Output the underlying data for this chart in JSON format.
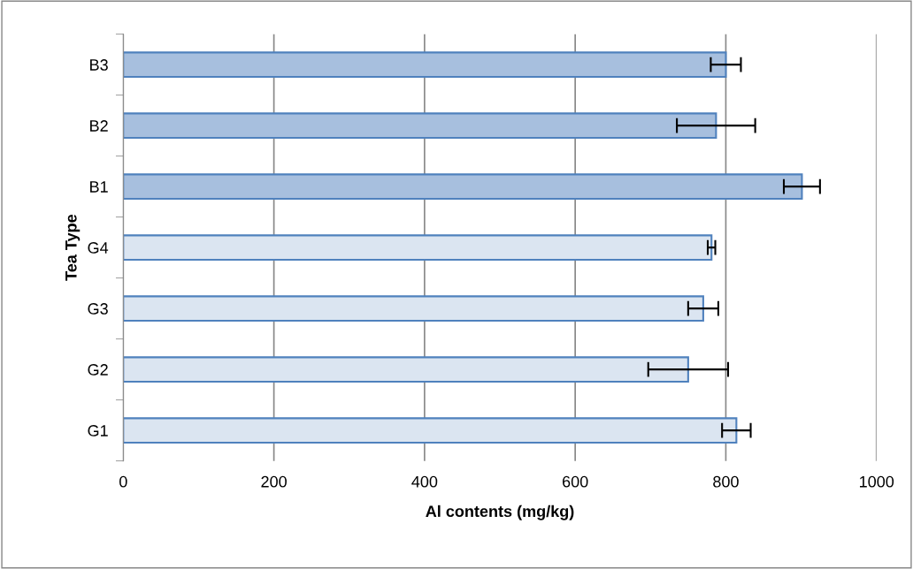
{
  "chart_data": {
    "type": "bar",
    "orientation": "horizontal",
    "xlabel": "Al contents (mg/kg)",
    "ylabel": "Tea Type",
    "categories": [
      "B3",
      "B2",
      "B1",
      "G4",
      "G3",
      "G2",
      "G1"
    ],
    "values": [
      800,
      787,
      901,
      781,
      770,
      750,
      814
    ],
    "errors": [
      20,
      52,
      24,
      5,
      20,
      53,
      19
    ],
    "colors": [
      "#a7bfde",
      "#a7bfde",
      "#a7bfde",
      "#dbe5f1",
      "#dbe5f1",
      "#dbe5f1",
      "#dbe5f1"
    ],
    "xlim": [
      0,
      1000
    ],
    "xticks": [
      0,
      200,
      400,
      600,
      800,
      1000
    ],
    "grid": "x",
    "legend": false
  }
}
